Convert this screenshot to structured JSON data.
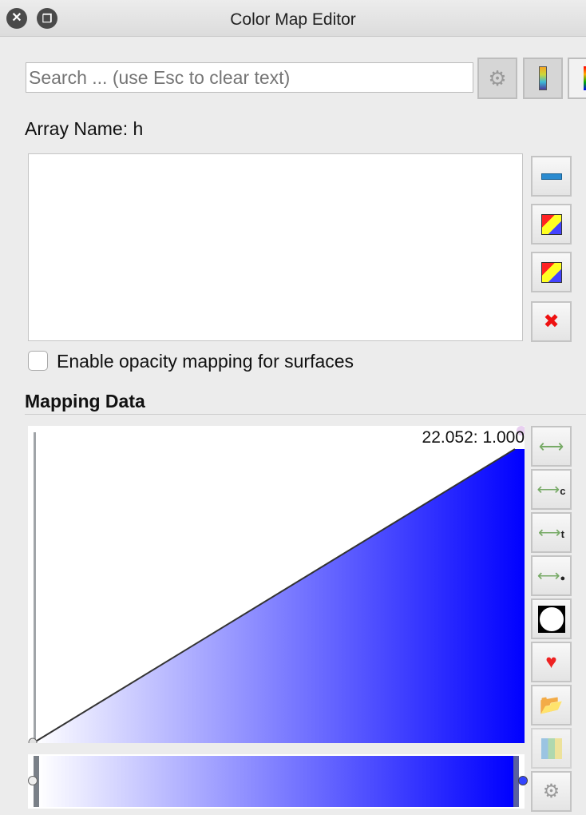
{
  "window": {
    "title": "Color Map Editor"
  },
  "search": {
    "placeholder": "Search ... (use Esc to clear text)",
    "value": ""
  },
  "array_name": "Array Name: h",
  "opacity_checkbox": {
    "label": "Enable opacity mapping for surfaces",
    "checked": false
  },
  "mapping_section": {
    "title": "Mapping Data",
    "point_label": "22.052: 1.000"
  },
  "colors": {
    "accent": "#0000ff",
    "start": "#ffffff"
  },
  "icons": {
    "side_list": [
      "minus-icon",
      "colors-copy-icon",
      "colors-eye-icon",
      "delete-icon"
    ],
    "side_chart": [
      "rescale-range-icon",
      "rescale-custom-icon",
      "rescale-temporal-icon",
      "rescale-visible-icon",
      "invert-icon",
      "favorite-presets-icon",
      "import-presets-icon",
      "histogram-icon",
      "gear-icon"
    ]
  }
}
